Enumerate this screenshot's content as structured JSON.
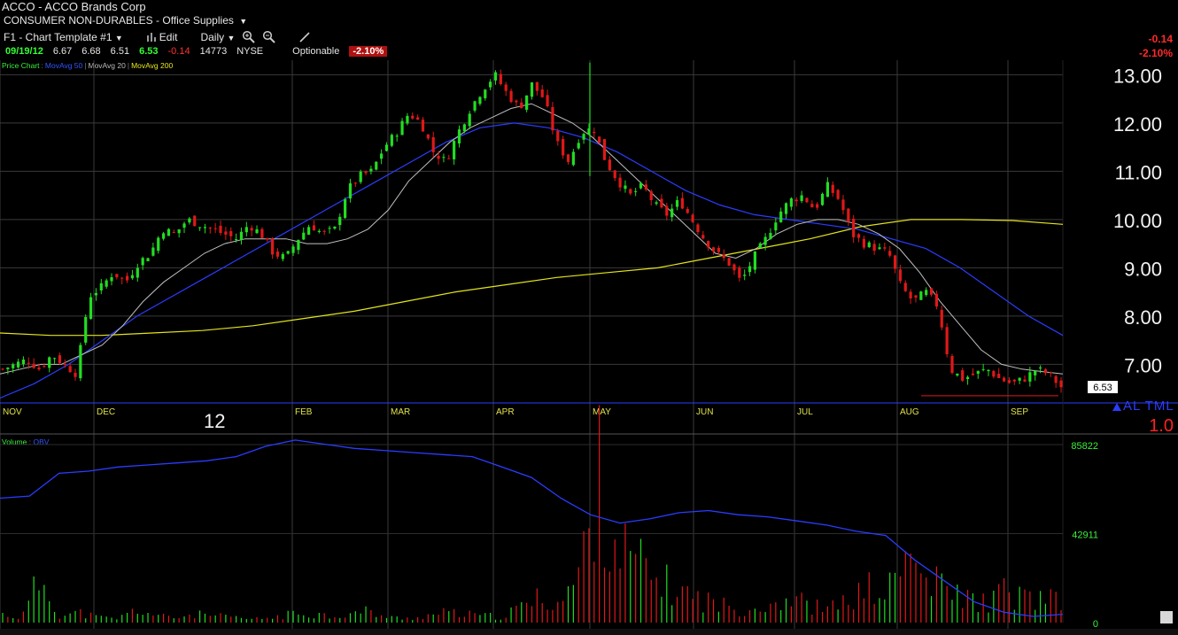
{
  "header": {
    "title": "ACCO  - ACCO Brands Corp",
    "sector": "CONSUMER NON-DURABLES",
    "industry": "Office Supplies"
  },
  "toolbar": {
    "template": "F1 - Chart Template #1",
    "edit_label": "Edit",
    "period_label": "Daily"
  },
  "quote": {
    "date": "09/19/12",
    "open": "6.67",
    "high": "6.68",
    "low": "6.51",
    "last": "6.53",
    "change": "-0.14",
    "volume": "14773",
    "exchange": "NYSE",
    "optionable_label": "Optionable",
    "change_pct": "-2.10%"
  },
  "right_info": {
    "change": "-0.14",
    "change_pct": "-2.10%"
  },
  "legend": {
    "price_chart": "Price Chart",
    "ma50": "MovAvg 50",
    "ma20": "MovAvg 20",
    "ma200": "MovAvg 200",
    "volume": "Volume",
    "obv": "OBV"
  },
  "price_tag": "6.53",
  "al_tml_label": "AL TML",
  "scale_label": "1.0",
  "year_marker": "12",
  "colors": {
    "up": "#22dd22",
    "down": "#e01818",
    "ma50": "#2b3cff",
    "ma20": "#bfbfbf",
    "ma200": "#e4e41c",
    "grid": "#3a3a3a"
  },
  "chart_data": [
    {
      "type": "candlestick",
      "title": "",
      "ylim": [
        6.2,
        13.3
      ],
      "y_ticks": [
        "13.00",
        "12.00",
        "11.00",
        "10.00",
        "9.00",
        "8.00",
        "7.00"
      ],
      "x_ticks": [
        "NOV",
        "DEC",
        "FEB",
        "MAR",
        "APR",
        "MAY",
        "JUN",
        "JUL",
        "AUG",
        "SEP"
      ],
      "close_trend": [
        6.9,
        7.0,
        7.1,
        6.9,
        7.2,
        7.0,
        6.8,
        8.4,
        8.6,
        8.9,
        8.7,
        9.1,
        9.3,
        9.8,
        9.7,
        10.0,
        9.9,
        9.8,
        9.7,
        9.6,
        9.9,
        9.7,
        9.3,
        9.2,
        9.6,
        9.9,
        9.7,
        9.8,
        10.6,
        10.9,
        11.0,
        11.5,
        11.8,
        12.2,
        12.0,
        11.4,
        11.2,
        11.8,
        12.3,
        12.7,
        13.0,
        12.6,
        12.3,
        12.8,
        12.5,
        11.6,
        11.2,
        11.8,
        11.9,
        11.2,
        10.8,
        10.5,
        10.7,
        10.3,
        10.1,
        10.4,
        10.0,
        9.6,
        9.3,
        9.1,
        8.7,
        9.2,
        9.6,
        10.1,
        10.4,
        10.5,
        10.2,
        10.7,
        10.4,
        9.7,
        9.5,
        9.4,
        9.3,
        8.6,
        8.3,
        8.5,
        8.2,
        6.9,
        6.7,
        6.8,
        6.9,
        6.7,
        6.6,
        6.7,
        6.9,
        6.8,
        6.53
      ],
      "ma20_trend": [
        6.8,
        6.9,
        7.0,
        7.0,
        7.2,
        7.4,
        7.8,
        8.3,
        8.7,
        9.0,
        9.3,
        9.5,
        9.6,
        9.6,
        9.6,
        9.5,
        9.5,
        9.6,
        9.8,
        10.2,
        10.8,
        11.2,
        11.6,
        11.9,
        12.1,
        12.3,
        12.4,
        12.2,
        12.0,
        11.7,
        11.3,
        10.9,
        10.5,
        10.1,
        9.7,
        9.3,
        9.2,
        9.4,
        9.7,
        9.9,
        10.0,
        10.0,
        9.9,
        9.7,
        9.4,
        8.9,
        8.3,
        7.8,
        7.3,
        7.0,
        6.9,
        6.85,
        6.8
      ],
      "ma50_trend": [
        6.3,
        6.6,
        7.0,
        7.5,
        8.0,
        8.4,
        8.8,
        9.2,
        9.6,
        10.0,
        10.4,
        10.8,
        11.2,
        11.6,
        11.9,
        12.0,
        11.9,
        11.7,
        11.4,
        11.0,
        10.6,
        10.3,
        10.1,
        10.0,
        9.9,
        9.8,
        9.6,
        9.4,
        9.0,
        8.5,
        8.0,
        7.6
      ],
      "ma200_trend": [
        7.65,
        7.6,
        7.6,
        7.65,
        7.7,
        7.8,
        7.95,
        8.1,
        8.3,
        8.5,
        8.65,
        8.8,
        8.9,
        9.0,
        9.2,
        9.4,
        9.6,
        9.85,
        10.0,
        10.0,
        9.98,
        9.9
      ]
    },
    {
      "type": "bar",
      "title": "",
      "ylim": [
        0,
        85822
      ],
      "y_ticks": [
        "85822",
        "42911",
        "0"
      ],
      "volume_trend": [
        5000,
        3000,
        28000,
        4000,
        6000,
        3000,
        2500,
        8000,
        4000,
        3000,
        5000,
        4000,
        3000,
        2000,
        3000,
        5000,
        6000,
        4000,
        5000,
        7000,
        3000,
        2500,
        4000,
        6000,
        5000,
        4000,
        3500,
        10000,
        15000,
        12000,
        30000,
        85822,
        45000,
        35000,
        25000,
        20000,
        15000,
        12000,
        8000,
        9000,
        12000,
        15000,
        10000,
        8000,
        14000,
        20000,
        18000,
        40000,
        25000,
        20000,
        15000,
        12000,
        18000,
        15000,
        14000,
        12000
      ],
      "obv_trend": [
        60000,
        61000,
        72000,
        73000,
        75000,
        76000,
        77000,
        78000,
        80000,
        85000,
        88000,
        86000,
        84000,
        83000,
        82000,
        81000,
        80000,
        75000,
        70000,
        60000,
        52000,
        48000,
        50000,
        53000,
        54000,
        52000,
        51000,
        49000,
        47000,
        44000,
        42000,
        30000,
        20000,
        10000,
        5000,
        3000,
        4000
      ]
    }
  ]
}
